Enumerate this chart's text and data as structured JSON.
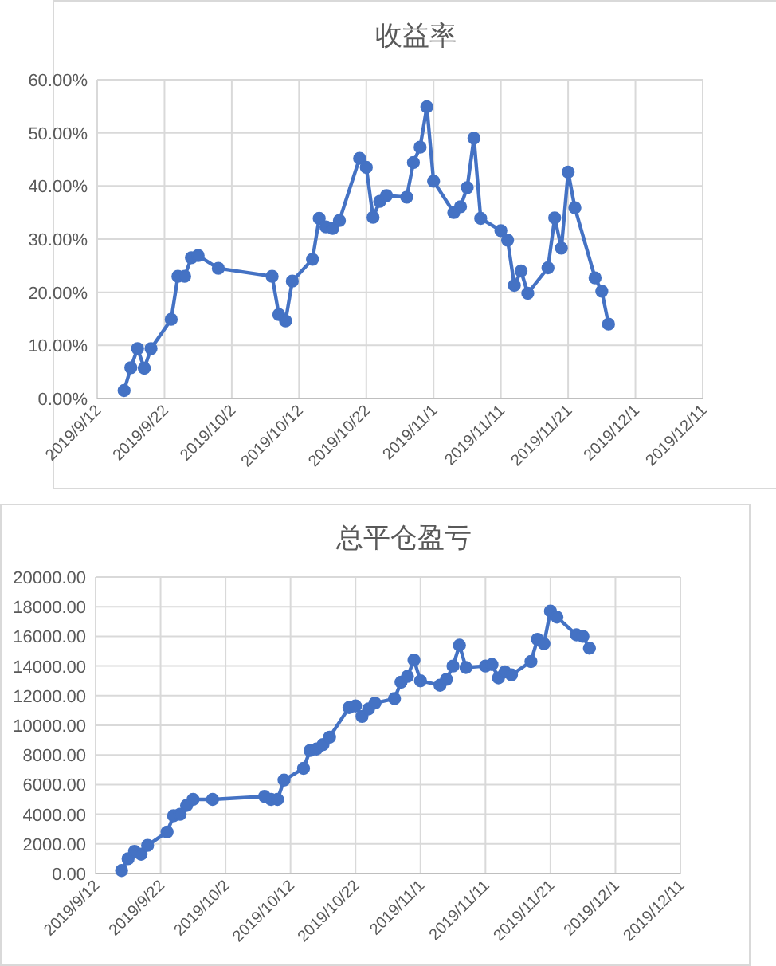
{
  "chart_data": [
    {
      "type": "line",
      "title": "收益率",
      "marker": "circle",
      "grid": true,
      "x": [
        "2019-09-16",
        "2019-09-17",
        "2019-09-18",
        "2019-09-19",
        "2019-09-20",
        "2019-09-23",
        "2019-09-24",
        "2019-09-25",
        "2019-09-26",
        "2019-09-27",
        "2019-09-30",
        "2019-10-08",
        "2019-10-09",
        "2019-10-10",
        "2019-10-11",
        "2019-10-14",
        "2019-10-15",
        "2019-10-16",
        "2019-10-17",
        "2019-10-18",
        "2019-10-21",
        "2019-10-22",
        "2019-10-23",
        "2019-10-24",
        "2019-10-25",
        "2019-10-28",
        "2019-10-29",
        "2019-10-30",
        "2019-10-31",
        "2019-11-01",
        "2019-11-04",
        "2019-11-05",
        "2019-11-06",
        "2019-11-07",
        "2019-11-08",
        "2019-11-11",
        "2019-11-12",
        "2019-11-13",
        "2019-11-14",
        "2019-11-15",
        "2019-11-18",
        "2019-11-19",
        "2019-11-20",
        "2019-11-21",
        "2019-11-22",
        "2019-11-25",
        "2019-11-26",
        "2019-11-27"
      ],
      "series": [
        {
          "color": "#4472c4",
          "values": [
            1.5,
            5.8,
            9.4,
            5.7,
            9.4,
            14.9,
            23.0,
            23.0,
            26.5,
            26.9,
            24.5,
            23.0,
            15.8,
            14.6,
            22.1,
            26.2,
            33.9,
            32.3,
            32.0,
            33.5,
            45.2,
            43.5,
            34.1,
            37.1,
            38.2,
            37.9,
            44.4,
            47.3,
            54.9,
            40.9,
            35.0,
            36.1,
            39.7,
            49.0,
            33.9,
            31.6,
            29.8,
            21.3,
            24.0,
            19.8,
            24.6,
            34.0,
            28.3,
            42.6,
            35.9,
            22.7,
            20.2,
            14.0
          ]
        }
      ],
      "xlim": [
        "2019-09-12",
        "2019-12-11"
      ],
      "xticks": [
        {
          "value": "2019-09-12",
          "label": "2019/9/12"
        },
        {
          "value": "2019-09-22",
          "label": "2019/9/22"
        },
        {
          "value": "2019-10-02",
          "label": "2019/10/2"
        },
        {
          "value": "2019-10-12",
          "label": "2019/10/12"
        },
        {
          "value": "2019-10-22",
          "label": "2019/10/22"
        },
        {
          "value": "2019-11-01",
          "label": "2019/11/1"
        },
        {
          "value": "2019-11-11",
          "label": "2019/11/11"
        },
        {
          "value": "2019-11-21",
          "label": "2019/11/21"
        },
        {
          "value": "2019-12-01",
          "label": "2019/12/1"
        },
        {
          "value": "2019-12-11",
          "label": "2019/12/11"
        }
      ],
      "ylim": [
        0,
        60
      ],
      "yticks": [
        {
          "value": 0,
          "label": "0.00%"
        },
        {
          "value": 10,
          "label": "10.00%"
        },
        {
          "value": 20,
          "label": "20.00%"
        },
        {
          "value": 30,
          "label": "30.00%"
        },
        {
          "value": 40,
          "label": "40.00%"
        },
        {
          "value": 50,
          "label": "50.00%"
        },
        {
          "value": 60,
          "label": "60.00%"
        }
      ]
    },
    {
      "type": "line",
      "title": "总平仓盈亏",
      "marker": "circle",
      "grid": true,
      "x": [
        "2019-09-16",
        "2019-09-17",
        "2019-09-18",
        "2019-09-19",
        "2019-09-20",
        "2019-09-23",
        "2019-09-24",
        "2019-09-25",
        "2019-09-26",
        "2019-09-27",
        "2019-09-30",
        "2019-10-08",
        "2019-10-09",
        "2019-10-10",
        "2019-10-11",
        "2019-10-14",
        "2019-10-15",
        "2019-10-16",
        "2019-10-17",
        "2019-10-18",
        "2019-10-21",
        "2019-10-22",
        "2019-10-23",
        "2019-10-24",
        "2019-10-25",
        "2019-10-28",
        "2019-10-29",
        "2019-10-30",
        "2019-10-31",
        "2019-11-01",
        "2019-11-04",
        "2019-11-05",
        "2019-11-06",
        "2019-11-07",
        "2019-11-08",
        "2019-11-11",
        "2019-11-12",
        "2019-11-13",
        "2019-11-14",
        "2019-11-15",
        "2019-11-18",
        "2019-11-19",
        "2019-11-20",
        "2019-11-21",
        "2019-11-22",
        "2019-11-25",
        "2019-11-26",
        "2019-11-27"
      ],
      "series": [
        {
          "color": "#4472c4",
          "values": [
            200,
            1000,
            1500,
            1300,
            1900,
            2800,
            3900,
            4000,
            4600,
            5000,
            5000,
            5200,
            5000,
            5000,
            6300,
            7100,
            8300,
            8400,
            8700,
            9200,
            11200,
            11300,
            10600,
            11100,
            11500,
            11800,
            12900,
            13300,
            14400,
            13000,
            12700,
            13100,
            14000,
            15400,
            13900,
            14000,
            14100,
            13200,
            13600,
            13400,
            14300,
            15800,
            15500,
            17700,
            17300,
            16100,
            16000,
            15200
          ]
        }
      ],
      "xlim": [
        "2019-09-12",
        "2019-12-11"
      ],
      "xticks": [
        {
          "value": "2019-09-12",
          "label": "2019/9/12"
        },
        {
          "value": "2019-09-22",
          "label": "2019/9/22"
        },
        {
          "value": "2019-10-02",
          "label": "2019/10/2"
        },
        {
          "value": "2019-10-12",
          "label": "2019/10/12"
        },
        {
          "value": "2019-10-22",
          "label": "2019/10/22"
        },
        {
          "value": "2019-11-01",
          "label": "2019/11/1"
        },
        {
          "value": "2019-11-11",
          "label": "2019/11/11"
        },
        {
          "value": "2019-11-21",
          "label": "2019/11/21"
        },
        {
          "value": "2019-12-01",
          "label": "2019/12/1"
        },
        {
          "value": "2019-12-11",
          "label": "2019/12/11"
        }
      ],
      "ylim": [
        0,
        20000
      ],
      "yticks": [
        {
          "value": 0,
          "label": "0.00"
        },
        {
          "value": 2000,
          "label": "2000.00"
        },
        {
          "value": 4000,
          "label": "4000.00"
        },
        {
          "value": 6000,
          "label": "6000.00"
        },
        {
          "value": 8000,
          "label": "8000.00"
        },
        {
          "value": 10000,
          "label": "10000.00"
        },
        {
          "value": 12000,
          "label": "12000.00"
        },
        {
          "value": 14000,
          "label": "14000.00"
        },
        {
          "value": 16000,
          "label": "16000.00"
        },
        {
          "value": 18000,
          "label": "18000.00"
        },
        {
          "value": 20000,
          "label": "20000.00"
        }
      ]
    }
  ]
}
